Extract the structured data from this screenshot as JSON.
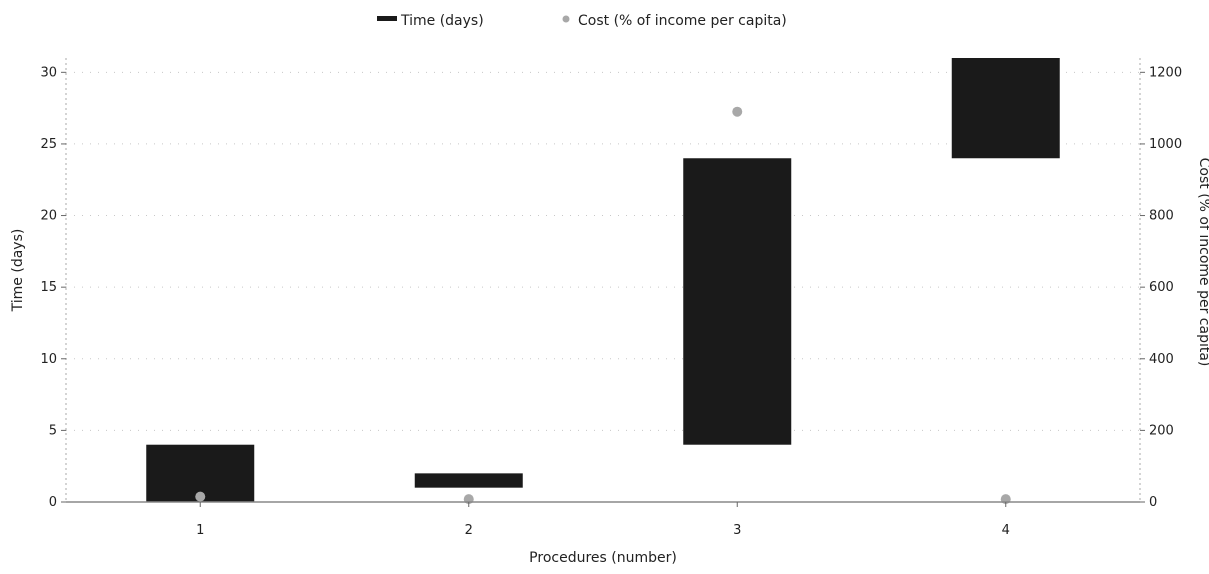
{
  "chart_data": {
    "type": "bar",
    "subtype": "floating-bar-with-scatter",
    "xlabel": "Procedures (number)",
    "ylabel_left": "Time (days)",
    "ylabel_right": "Cost (% of income per capita)",
    "categories": [
      "1",
      "2",
      "3",
      "4"
    ],
    "ylim_left": [
      0,
      31
    ],
    "ylim_right": [
      0,
      1240
    ],
    "left_ticks": [
      0,
      5,
      10,
      15,
      20,
      25,
      30
    ],
    "right_ticks": [
      0,
      200,
      400,
      600,
      800,
      1000,
      1200
    ],
    "grid": "dotted",
    "legend_position": "top",
    "series": [
      {
        "name": "Time (days)",
        "axis": "left",
        "mark": "floating-bar",
        "color": "#1a1a1a",
        "ranges": [
          [
            0,
            4
          ],
          [
            1,
            2
          ],
          [
            4,
            24
          ],
          [
            24,
            31
          ]
        ]
      },
      {
        "name": "Cost (% of income per capita)",
        "axis": "right",
        "mark": "point",
        "color": "#a8a8a8",
        "values": [
          15,
          8,
          1090,
          8
        ]
      }
    ]
  }
}
